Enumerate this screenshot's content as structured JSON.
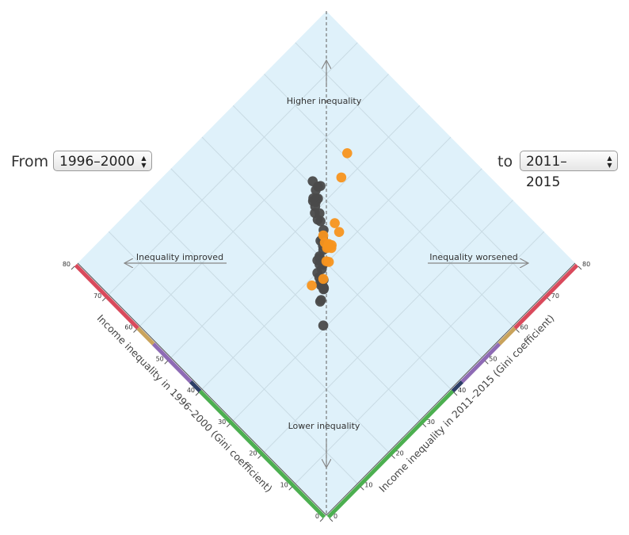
{
  "controls": {
    "from_label": "From",
    "from_value": "1996–2000",
    "to_label": "to",
    "to_value": "2011–2015",
    "arrow_up": "▲",
    "arrow_down": "▼"
  },
  "annotations": {
    "higher": "Higher inequality",
    "lower": "Lower inequality",
    "improved": "Inequality improved",
    "worsened": "Inequality worsened"
  },
  "colors": {
    "background": "#dff1fa",
    "grid": "#c9dbe4",
    "diagonal": "#777777",
    "worsened_point": "#f7931e",
    "improved_point": "#4a4a4a",
    "band_low": "#4caf50",
    "band_lowmid": "#2c3e66",
    "band_mid": "#8e6bb5",
    "band_midhigh": "#c9a35c",
    "band_high": "#d94a5c"
  },
  "chart_data": {
    "type": "scatter",
    "xlabel": "Income inequality in 1996–2000 (Gini coefficient)",
    "ylabel": "Income inequality in 2011–2015 (Gini coefficient)",
    "xlim": [
      0,
      80
    ],
    "ylim": [
      0,
      80
    ],
    "ticks": [
      0,
      10,
      20,
      30,
      40,
      50,
      60,
      70,
      80
    ],
    "color_bands": [
      {
        "from": 0,
        "to": 40,
        "color": "#4caf50"
      },
      {
        "from": 40,
        "to": 43,
        "color": "#2c3e66"
      },
      {
        "from": 43,
        "to": 55,
        "color": "#8e6bb5"
      },
      {
        "from": 55,
        "to": 60,
        "color": "#c9a35c"
      },
      {
        "from": 60,
        "to": 80,
        "color": "#d94a5c"
      }
    ],
    "series": [
      {
        "color": "#4a4a4a",
        "points": [
          [
            55.2,
            50.8
          ],
          [
            53.2,
            51.3
          ],
          [
            53.5,
            50.8
          ],
          [
            53.3,
            49.9
          ],
          [
            51.6,
            48.9
          ],
          [
            51.9,
            48.6
          ],
          [
            52.4,
            48.2
          ],
          [
            52.0,
            47.7
          ],
          [
            51.4,
            48.0
          ],
          [
            50.8,
            47.2
          ],
          [
            49.0,
            46.8
          ],
          [
            49.8,
            46.1
          ],
          [
            48.3,
            45.5
          ],
          [
            47.6,
            45.7
          ],
          [
            45.7,
            44.8
          ],
          [
            44.6,
            43.5
          ],
          [
            44.3,
            43.0
          ],
          [
            44.5,
            42.6
          ],
          [
            43.3,
            42.2
          ],
          [
            42.6,
            41.6
          ],
          [
            42.2,
            40.0
          ],
          [
            41.9,
            39.7
          ],
          [
            40.3,
            39.2
          ],
          [
            41.9,
            39.0
          ],
          [
            40.9,
            38.7
          ],
          [
            39.8,
            38.3
          ],
          [
            37.8,
            36.9
          ],
          [
            39.9,
            37.0
          ],
          [
            38.9,
            36.6
          ],
          [
            37.9,
            36.0
          ],
          [
            37.3,
            35.6
          ],
          [
            36.4,
            35.6
          ],
          [
            36.6,
            35.7
          ],
          [
            36.3,
            35.4
          ],
          [
            35.0,
            33.3
          ],
          [
            34.9,
            32.9
          ],
          [
            30.6,
            29.6
          ]
        ]
      },
      {
        "color": "#f7931e",
        "points": [
          [
            54.1,
            60.8
          ],
          [
            51.2,
            56.0
          ],
          [
            45.0,
            47.7
          ],
          [
            42.9,
            47.0
          ],
          [
            44.9,
            43.9
          ],
          [
            43.5,
            43.0
          ],
          [
            42.7,
            43.4
          ],
          [
            42.3,
            42.9
          ],
          [
            42.3,
            42.5
          ],
          [
            42.0,
            43.7
          ],
          [
            41.6,
            43.2
          ],
          [
            40.3,
            40.3
          ],
          [
            39.8,
            40.6
          ],
          [
            38.0,
            37.0
          ],
          [
            38.8,
            34.1
          ]
        ]
      }
    ]
  }
}
